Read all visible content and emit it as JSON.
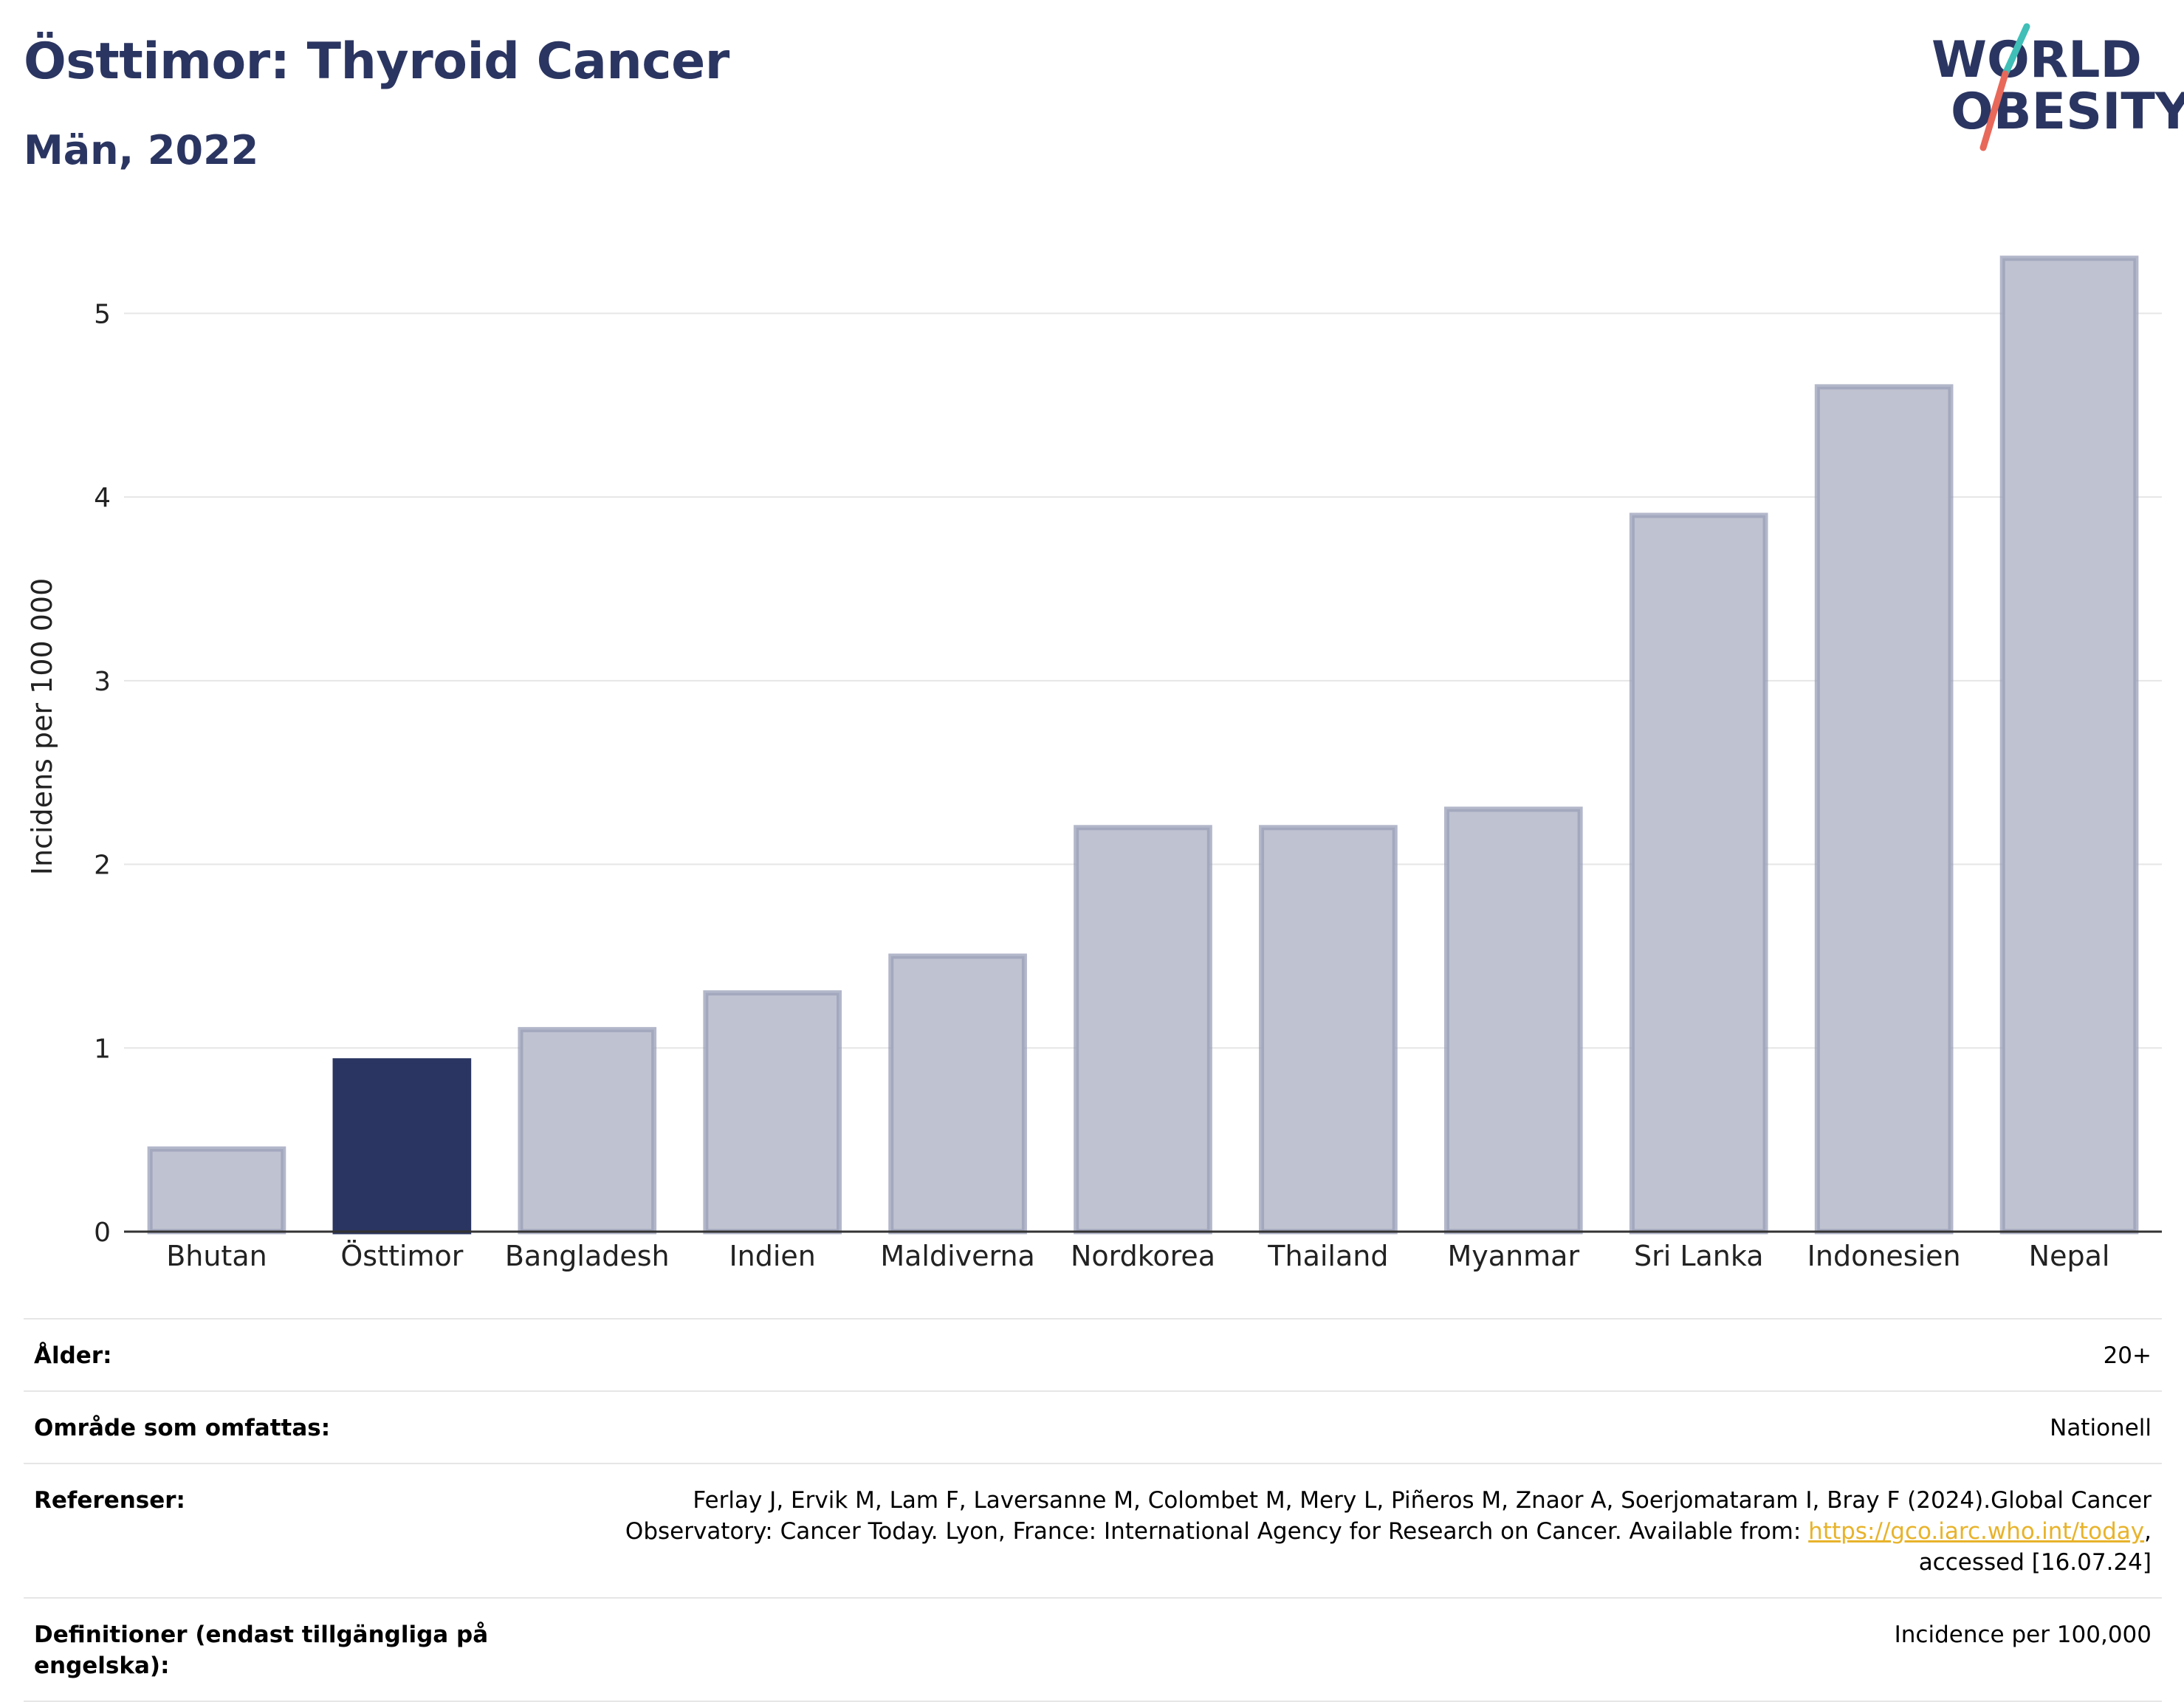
{
  "header": {
    "title": "Östtimor: Thyroid Cancer",
    "subtitle": "Män, 2022"
  },
  "logo": {
    "line1": "WORLD",
    "line2": "OBESITY",
    "slash_colors": [
      "#3fbfb7",
      "#e8685a"
    ]
  },
  "chart_data": {
    "type": "bar",
    "categories": [
      "Bhutan",
      "Östtimor",
      "Bangladesh",
      "Indien",
      "Maldiverna",
      "Nordkorea",
      "Thailand",
      "Myanmar",
      "Sri Lanka",
      "Indonesien",
      "Nepal"
    ],
    "values": [
      0.45,
      0.93,
      1.1,
      1.3,
      1.5,
      2.2,
      2.2,
      2.3,
      3.9,
      4.6,
      5.3
    ],
    "highlight": "Östtimor",
    "ylabel": "Incidens per 100 000",
    "xlabel": "",
    "ylim": [
      0,
      5.5
    ],
    "yticks": [
      0,
      1,
      2,
      3,
      4,
      5
    ],
    "grid": true,
    "colors": {
      "bar": "#bfc2d0",
      "bar_border": "#9a9fb8",
      "highlight": "#2b3561",
      "grid": "#e6e6e6",
      "axis": "#333333"
    }
  },
  "meta": [
    {
      "label": "Ålder:",
      "value": "20+"
    },
    {
      "label": "Område som omfattas:",
      "value": "Nationell"
    },
    {
      "label": "Referenser:",
      "value_before": "Ferlay J, Ervik M, Lam F, Laversanne M, Colombet M, Mery L, Piñeros M, Znaor A, Soerjomataram I, Bray F (2024).Global Cancer Observatory: Cancer Today. Lyon, France: International Agency for Research on Cancer. Available from: ",
      "link": "https://gco.iarc.who.int/today",
      "value_after": ", accessed [16.07.24]"
    },
    {
      "label": "Definitioner (endast tillgängliga på engelska):",
      "value": "Incidence per 100,000"
    }
  ]
}
